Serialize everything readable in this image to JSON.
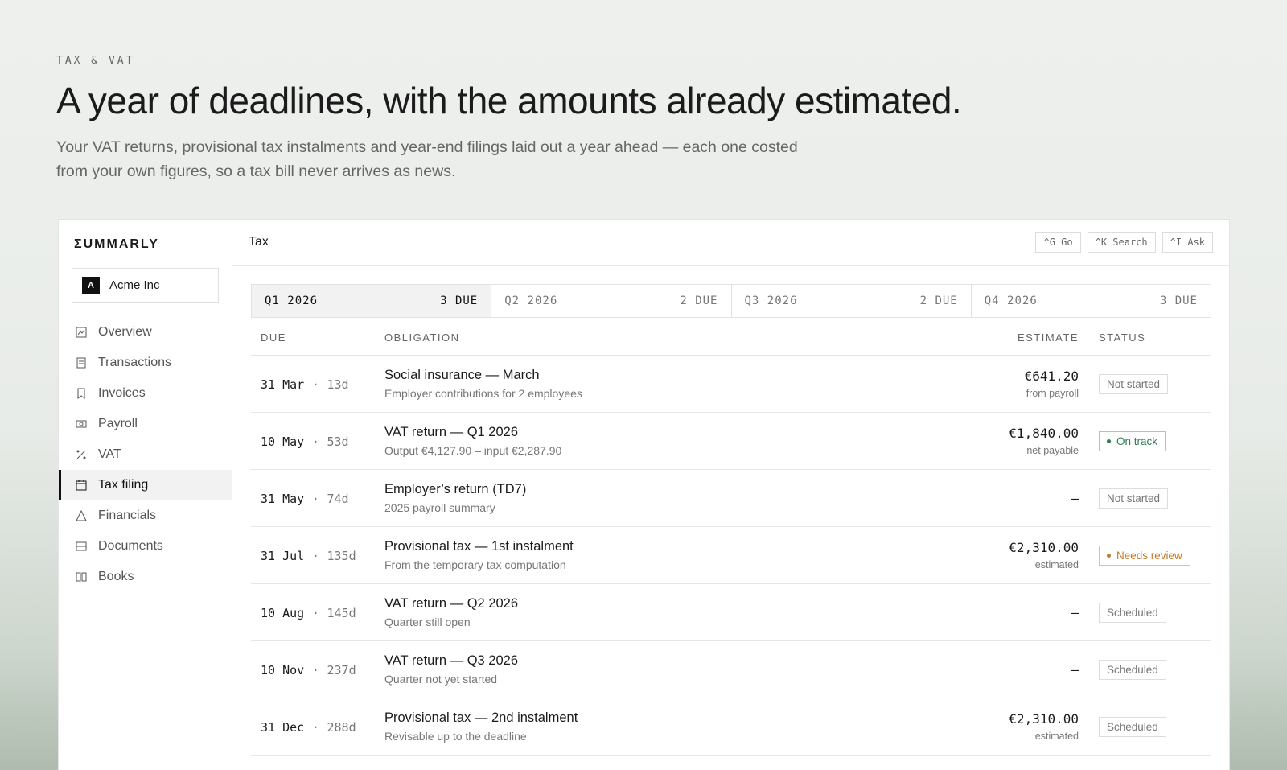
{
  "header": {
    "eyebrow": "TAX & VAT",
    "title": "A year of deadlines, with the amounts already estimated.",
    "subtitle": "Your VAT returns, provisional tax instalments and year-end filings laid out a year ahead — each one costed from your own figures, so a tax bill never arrives as news."
  },
  "sidebar": {
    "brand": "ΣUMMARLY",
    "company_initial": "A",
    "company": "Acme Inc",
    "nav": [
      "Overview",
      "Transactions",
      "Invoices",
      "Payroll",
      "VAT",
      "Tax filing",
      "Financials",
      "Documents",
      "Books"
    ],
    "active": "Tax filing"
  },
  "topbar": {
    "title": "Tax",
    "shortcuts": [
      "^G Go",
      "^K Search",
      "^I Ask"
    ]
  },
  "quarters": [
    {
      "label": "Q1 2026",
      "due": "3 DUE",
      "active": true
    },
    {
      "label": "Q2 2026",
      "due": "2 DUE"
    },
    {
      "label": "Q3 2026",
      "due": "2 DUE"
    },
    {
      "label": "Q4 2026",
      "due": "3 DUE"
    }
  ],
  "table": {
    "columns": [
      "DUE",
      "OBLIGATION",
      "ESTIMATE",
      "STATUS"
    ],
    "separator": "·",
    "rows": [
      {
        "date": "31 Mar",
        "days": "13d",
        "title": "Social insurance — March",
        "detail": "Employer contributions for 2 employees",
        "estimate": "€641.20",
        "note": "from payroll",
        "status": "Not started"
      },
      {
        "date": "10 May",
        "days": "53d",
        "title": "VAT return — Q1 2026",
        "detail": "Output €4,127.90 – input €2,287.90",
        "estimate": "€1,840.00",
        "note": "net payable",
        "status": "On track",
        "tone": "green"
      },
      {
        "date": "31 May",
        "days": "74d",
        "title": "Employer’s return (TD7)",
        "detail": "2025 payroll summary",
        "estimate": "—",
        "status": "Not started"
      },
      {
        "date": "31 Jul",
        "days": "135d",
        "title": "Provisional tax — 1st instalment",
        "detail": "From the temporary tax computation",
        "estimate": "€2,310.00",
        "note": "estimated",
        "status": "Needs review",
        "tone": "orange"
      },
      {
        "date": "10 Aug",
        "days": "145d",
        "title": "VAT return — Q2 2026",
        "detail": "Quarter still open",
        "estimate": "—",
        "status": "Scheduled"
      },
      {
        "date": "10 Nov",
        "days": "237d",
        "title": "VAT return — Q3 2026",
        "detail": "Quarter not yet started",
        "estimate": "—",
        "status": "Scheduled"
      },
      {
        "date": "31 Dec",
        "days": "288d",
        "title": "Provisional tax — 2nd instalment",
        "detail": "Revisable up to the deadline",
        "estimate": "€2,310.00",
        "note": "estimated",
        "status": "Scheduled"
      }
    ]
  }
}
